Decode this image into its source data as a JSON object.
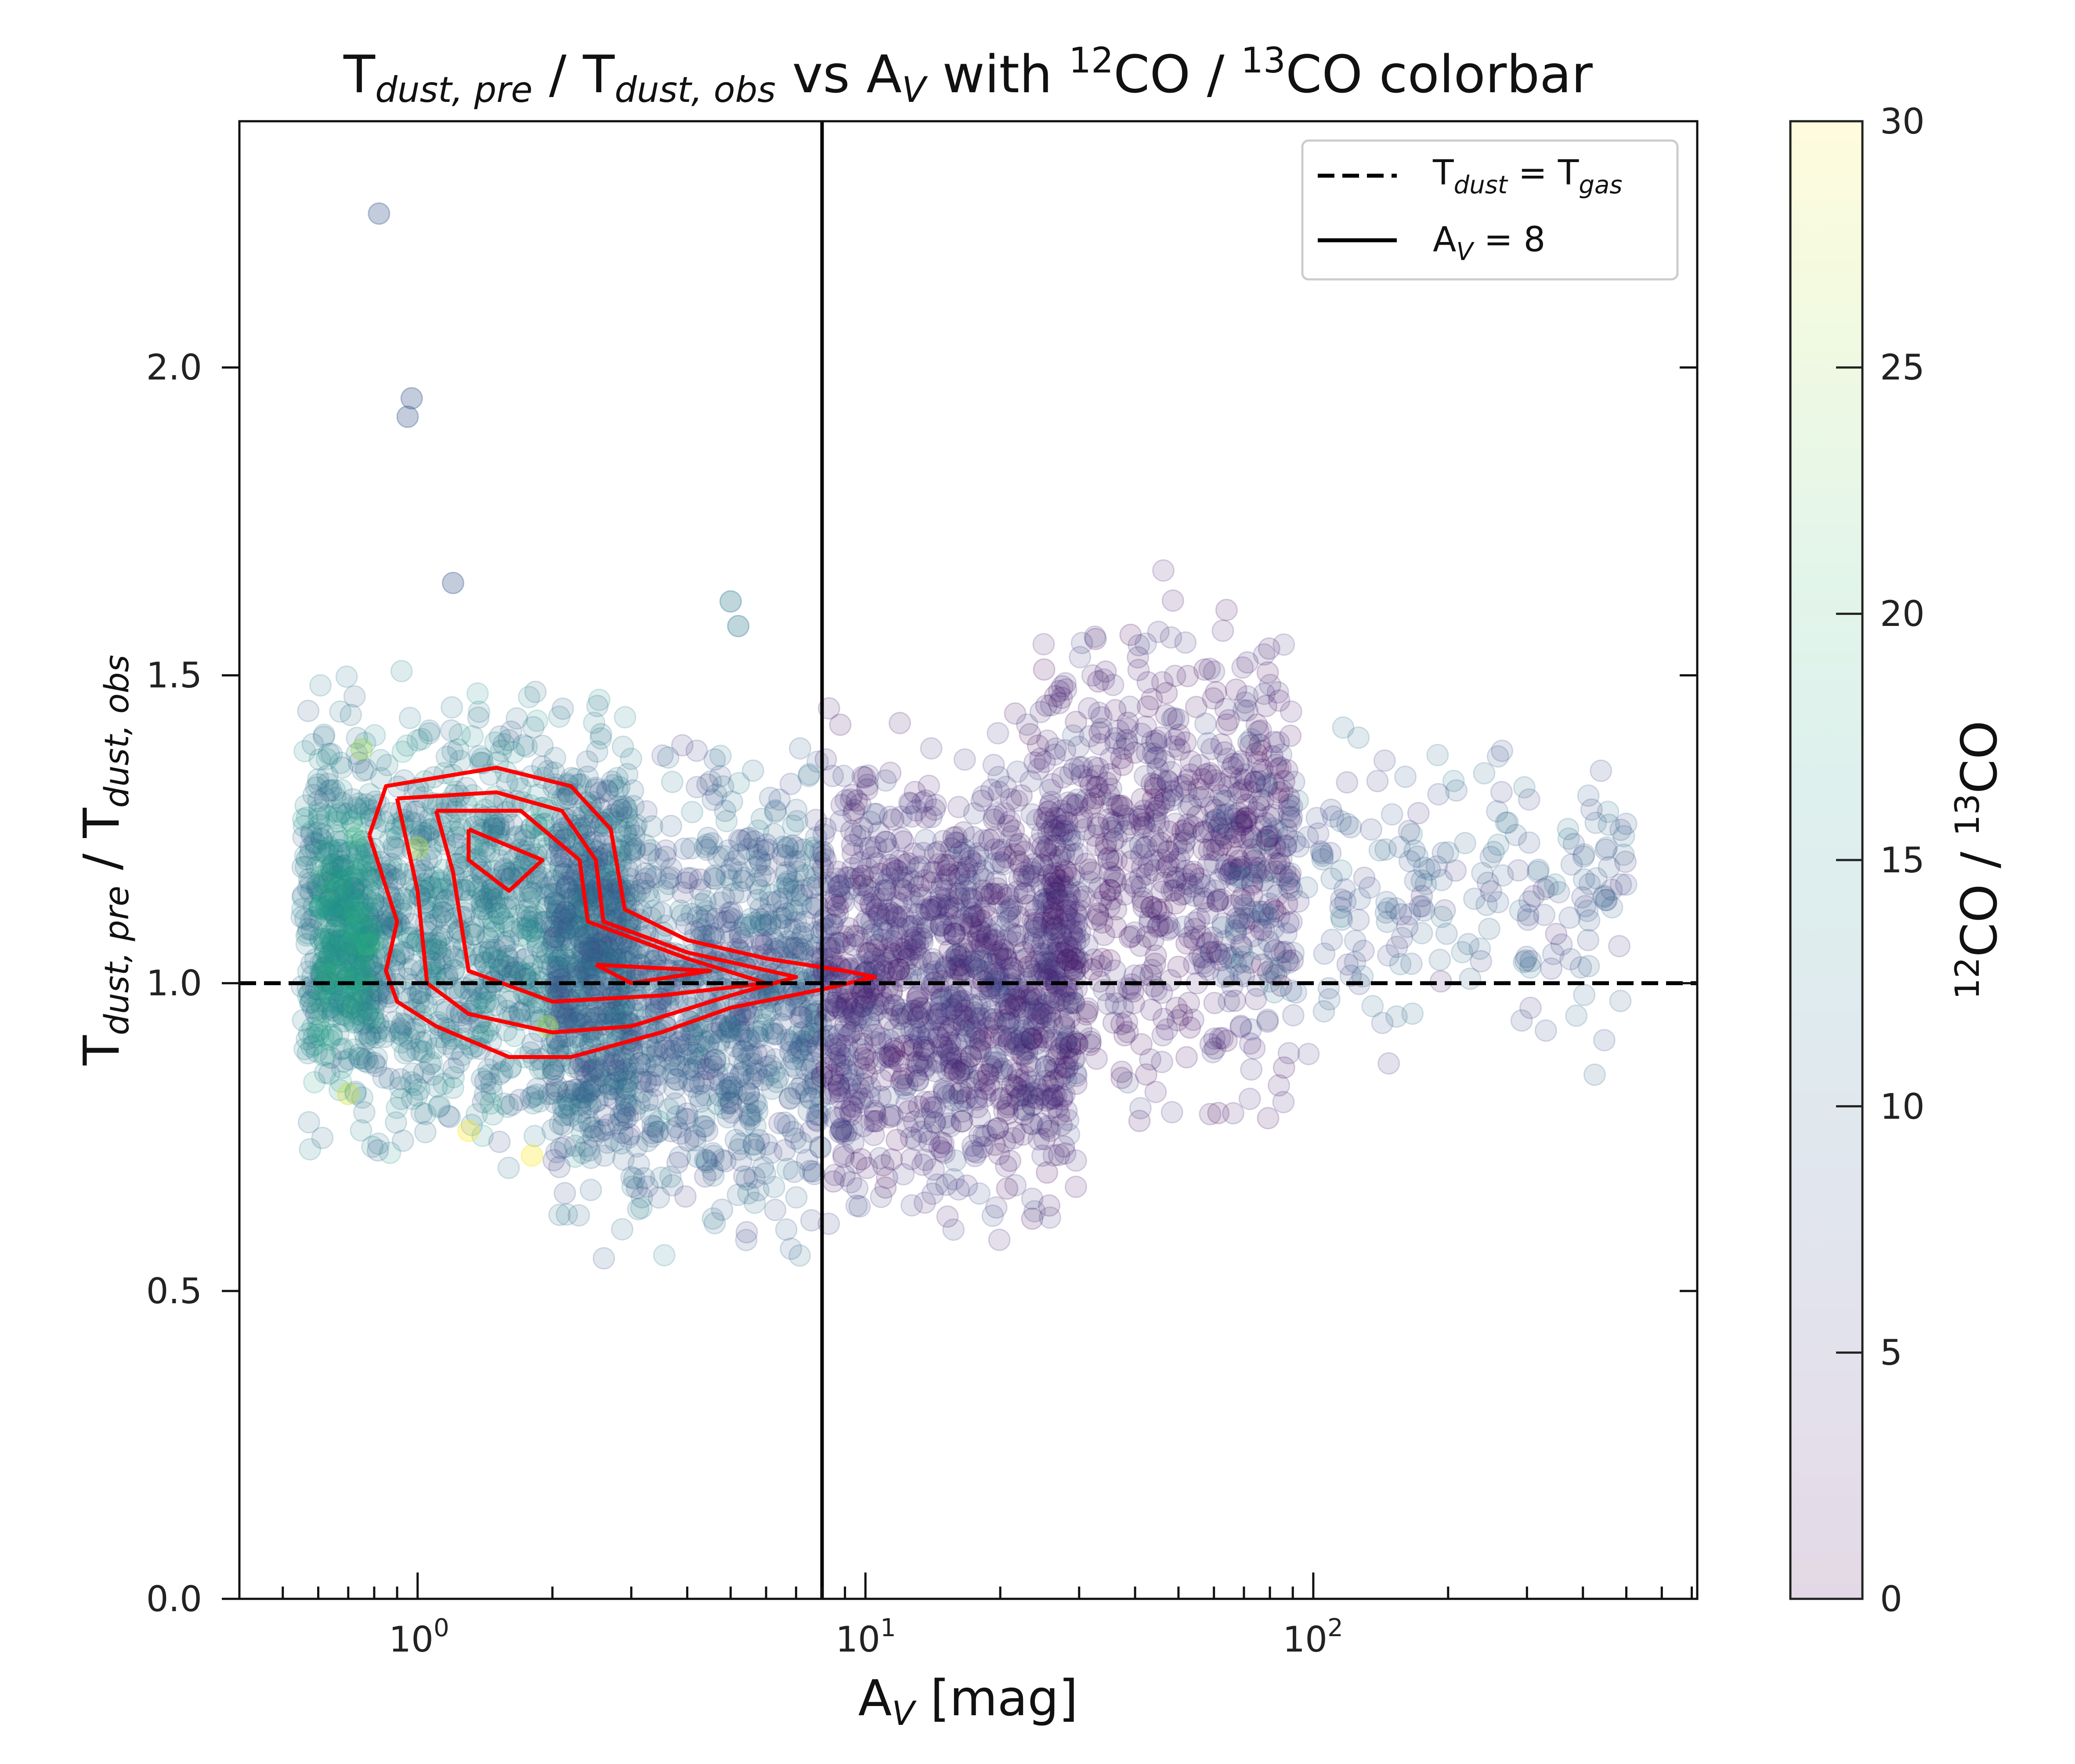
{
  "chart_data": {
    "type": "scatter",
    "title": {
      "t1": "T",
      "s1": "dust, pre",
      "slash": " / T",
      "s2": "dust, obs",
      "mid": " vs A",
      "s3": "V",
      "with": " with ",
      "sup1": "12",
      "co1": "CO / ",
      "sup2": "13",
      "co2": "CO colorbar"
    },
    "xlabel": {
      "a": "A",
      "sub": "V",
      "rest": " [mag]"
    },
    "ylabel": {
      "t1": "T",
      "s1": "dust, pre",
      "slash": " / T",
      "s2": "dust, obs"
    },
    "xscale": "log",
    "xlim": [
      0.4,
      720
    ],
    "ylim": [
      0.0,
      2.4
    ],
    "xticks": [
      {
        "base": "10",
        "exp": "0",
        "value": 1
      },
      {
        "base": "10",
        "exp": "1",
        "value": 10
      },
      {
        "base": "10",
        "exp": "2",
        "value": 100
      }
    ],
    "yticks": [
      "0.0",
      "0.5",
      "1.0",
      "1.5",
      "2.0"
    ],
    "grid": false,
    "legend": {
      "placement": "top-right",
      "entries": [
        {
          "style": "dashed",
          "t": "T",
          "sub1": "dust",
          "eq": " = T",
          "sub2": "gas"
        },
        {
          "style": "solid",
          "a": "A",
          "sub": "V",
          "eq": " = 8"
        }
      ]
    },
    "reference_lines": {
      "horizontal_y": 1.0,
      "vertical_x": 8
    },
    "colorbar": {
      "label": {
        "sup1": "12",
        "co1": "CO / ",
        "sup2": "13",
        "co2": "CO"
      },
      "range": [
        0,
        30
      ],
      "ticks": [
        "0",
        "5",
        "10",
        "15",
        "20",
        "25",
        "30"
      ],
      "colormap": "viridis",
      "alpha": 0.15
    },
    "point_regions": [
      {
        "av": [
          0.55,
          3.0
        ],
        "ratio": [
          0.7,
          1.5
        ],
        "co_ratio": 12,
        "count": 1400
      },
      {
        "av": [
          0.6,
          0.8
        ],
        "ratio": [
          0.85,
          1.32
        ],
        "co_ratio": 16,
        "count": 250
      },
      {
        "av": [
          2.0,
          8.0
        ],
        "ratio": [
          0.55,
          1.42
        ],
        "co_ratio": 9,
        "count": 1200
      },
      {
        "av": [
          8.0,
          30.0
        ],
        "ratio": [
          0.58,
          1.45
        ],
        "co_ratio": 4,
        "count": 1300
      },
      {
        "av": [
          25.0,
          90.0
        ],
        "ratio": [
          0.75,
          1.68
        ],
        "co_ratio": 3,
        "count": 700
      },
      {
        "av": [
          60.0,
          500.0
        ],
        "ratio": [
          0.85,
          1.45
        ],
        "co_ratio": 8,
        "count": 260
      }
    ],
    "outliers": [
      [
        0.82,
        2.25,
        8
      ],
      [
        0.97,
        1.95,
        8
      ],
      [
        0.95,
        1.92,
        8
      ],
      [
        1.2,
        1.65,
        8
      ],
      [
        5.0,
        1.62,
        12
      ],
      [
        5.2,
        1.58,
        12
      ],
      [
        0.75,
        1.38,
        25
      ],
      [
        1.3,
        0.76,
        30
      ],
      [
        1.8,
        0.72,
        30
      ],
      [
        0.7,
        0.82,
        28
      ],
      [
        1.0,
        1.22,
        27
      ],
      [
        1.95,
        0.93,
        26
      ]
    ],
    "contours": [
      [
        [
          0.78,
          1.24
        ],
        [
          0.85,
          1.32
        ],
        [
          1.5,
          1.35
        ],
        [
          2.2,
          1.32
        ],
        [
          2.7,
          1.25
        ],
        [
          2.9,
          1.12
        ],
        [
          4,
          1.07
        ],
        [
          6,
          1.04
        ],
        [
          9,
          1.02
        ],
        [
          10.5,
          1.01
        ],
        [
          8,
          0.99
        ],
        [
          5,
          0.96
        ],
        [
          3.5,
          0.92
        ],
        [
          2.2,
          0.88
        ],
        [
          1.6,
          0.88
        ],
        [
          1.1,
          0.93
        ],
        [
          0.9,
          0.97
        ],
        [
          0.85,
          1.02
        ],
        [
          0.9,
          1.1
        ],
        [
          0.78,
          1.24
        ]
      ],
      [
        [
          0.9,
          1.3
        ],
        [
          1.5,
          1.31
        ],
        [
          2.1,
          1.28
        ],
        [
          2.5,
          1.2
        ],
        [
          2.6,
          1.1
        ],
        [
          4,
          1.05
        ],
        [
          7,
          1.01
        ],
        [
          5,
          0.98
        ],
        [
          3,
          0.93
        ],
        [
          2,
          0.92
        ],
        [
          1.3,
          0.95
        ],
        [
          1.05,
          1.0
        ],
        [
          1.0,
          1.15
        ],
        [
          0.9,
          1.3
        ]
      ],
      [
        [
          1.1,
          1.28
        ],
        [
          1.7,
          1.28
        ],
        [
          2.3,
          1.2
        ],
        [
          2.4,
          1.1
        ],
        [
          4,
          1.04
        ],
        [
          6,
          1.0
        ],
        [
          3.5,
          0.98
        ],
        [
          2,
          0.97
        ],
        [
          1.3,
          1.02
        ],
        [
          1.2,
          1.18
        ],
        [
          1.1,
          1.28
        ]
      ],
      [
        [
          1.3,
          1.25
        ],
        [
          1.9,
          1.2
        ],
        [
          1.6,
          1.15
        ],
        [
          1.3,
          1.2
        ],
        [
          1.3,
          1.25
        ]
      ],
      [
        [
          2.5,
          1.03
        ],
        [
          4.5,
          1.02
        ],
        [
          3,
          1.0
        ],
        [
          2.5,
          1.03
        ]
      ]
    ],
    "contour_color": "#ff0000"
  }
}
